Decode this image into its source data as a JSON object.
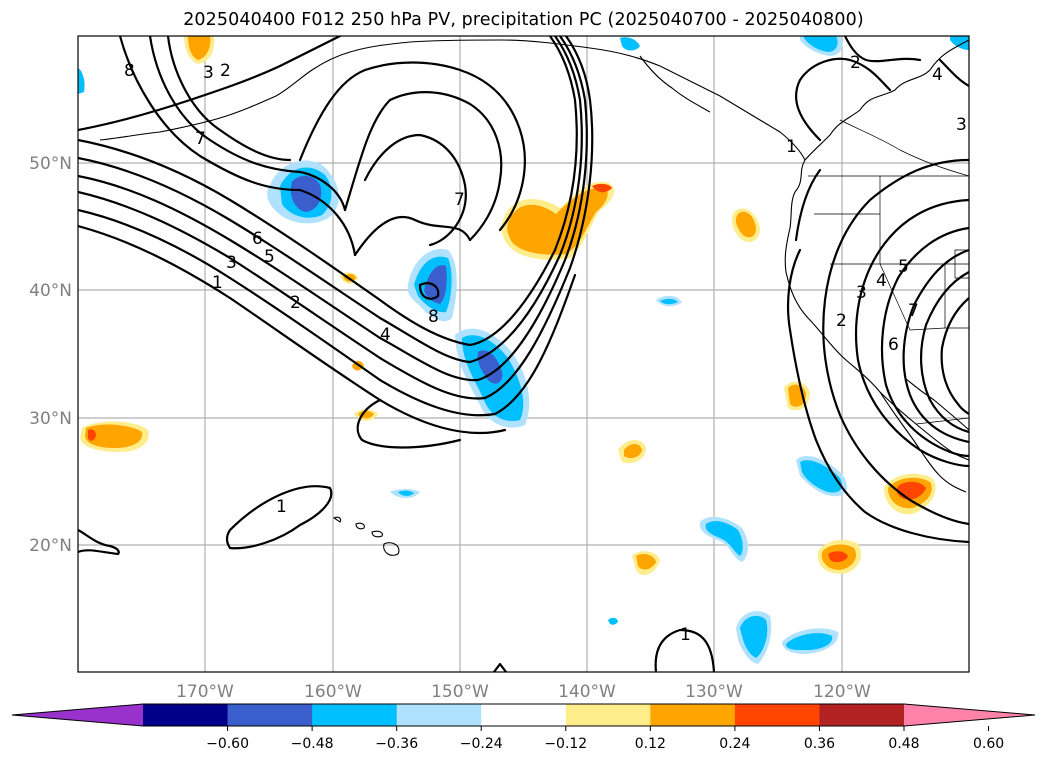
{
  "title": "2025040400 F012 250 hPa PV, precipitation PC (2025040700 - 2025040800)",
  "map": {
    "lat_labels": [
      "50°N",
      "40°N",
      "30°N",
      "20°N"
    ],
    "lon_labels": [
      "170°W",
      "160°W",
      "150°W",
      "140°W",
      "130°W",
      "120°W"
    ],
    "contour_labels": [
      "8",
      "3",
      "2",
      "7",
      "6",
      "5",
      "3",
      "1",
      "2",
      "4",
      "7",
      "8",
      "1",
      "1",
      "2",
      "1",
      "2",
      "3",
      "4",
      "5",
      "6",
      "7",
      "4",
      "3"
    ]
  },
  "colorbar": {
    "colors": [
      "#9932cc",
      "#00008b",
      "#3a5fcd",
      "#00bfff",
      "#b0e2ff",
      "#ffffff",
      "#ffec8b",
      "#ffa500",
      "#ff4500",
      "#b22222",
      "#ff82ab"
    ],
    "ticks": [
      "−0.60",
      "−0.48",
      "−0.36",
      "−0.24",
      "−0.12",
      "0.12",
      "0.24",
      "0.36",
      "0.48",
      "0.60"
    ]
  }
}
